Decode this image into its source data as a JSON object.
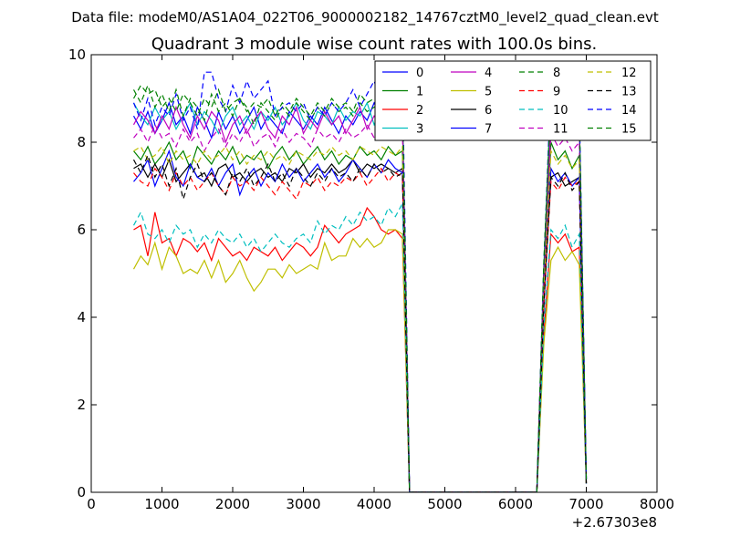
{
  "suptitle": "Data file: modeM0/AS1A04_022T06_9000002182_14767cztM0_level2_quad_clean.evt",
  "chart_data": {
    "type": "line",
    "title": "Quadrant 3 module wise count rates with 100.0s bins.",
    "xlabel": "",
    "ylabel": "",
    "x_offset_label": "+2.67303e8",
    "xlim": [
      0,
      8000
    ],
    "ylim": [
      0,
      10
    ],
    "xticks": [
      0,
      1000,
      2000,
      3000,
      4000,
      5000,
      6000,
      7000,
      8000
    ],
    "yticks": [
      0,
      2,
      4,
      6,
      8,
      10
    ],
    "grid": false,
    "legend_position": "top-right",
    "x": [
      600,
      700,
      800,
      900,
      1000,
      1100,
      1200,
      1300,
      1400,
      1500,
      1600,
      1700,
      1800,
      1900,
      2000,
      2100,
      2200,
      2300,
      2400,
      2500,
      2600,
      2700,
      2800,
      2900,
      3000,
      3100,
      3200,
      3300,
      3400,
      3500,
      3600,
      3700,
      3800,
      3900,
      4000,
      4100,
      4200,
      4300,
      4400,
      4500,
      4600,
      4700,
      4800,
      4900,
      5000,
      5100,
      5200,
      5300,
      5400,
      5500,
      5600,
      5700,
      5800,
      5900,
      6000,
      6100,
      6200,
      6300,
      6400,
      6500,
      6600,
      6700,
      6800,
      6900,
      7000
    ],
    "series": [
      {
        "name": "0",
        "color": "#0000ff",
        "dash": "solid",
        "values": [
          8.6,
          8.3,
          8.7,
          8.2,
          8.5,
          8.9,
          8.4,
          8.6,
          8.2,
          8.8,
          8.5,
          8.1,
          8.7,
          8.3,
          8.6,
          8.2,
          8.5,
          8.8,
          8.3,
          8.6,
          8.4,
          8.2,
          8.7,
          8.5,
          8.3,
          8.6,
          8.4,
          8.8,
          8.5,
          8.2,
          8.6,
          8.4,
          8.7,
          8.5,
          8.9,
          8.6,
          8.8,
          8.5,
          8.7,
          0,
          0,
          0,
          0,
          0,
          0,
          0,
          0,
          0,
          0,
          0,
          0,
          0,
          0,
          0,
          0,
          0,
          0,
          0,
          5.0,
          8.9,
          8.3,
          8.6,
          8.4,
          8.5,
          0.3
        ]
      },
      {
        "name": "1",
        "color": "#008000",
        "dash": "solid",
        "values": [
          7.8,
          7.6,
          7.9,
          7.5,
          7.7,
          8.0,
          7.6,
          7.8,
          7.4,
          7.9,
          7.7,
          7.5,
          7.8,
          7.6,
          7.9,
          7.5,
          7.7,
          7.6,
          7.8,
          7.4,
          7.7,
          7.9,
          7.6,
          7.8,
          7.5,
          7.7,
          7.9,
          7.6,
          7.8,
          7.5,
          7.7,
          7.6,
          7.9,
          7.7,
          7.8,
          7.6,
          7.9,
          7.7,
          7.8,
          0,
          0,
          0,
          0,
          0,
          0,
          0,
          0,
          0,
          0,
          0,
          0,
          0,
          0,
          0,
          0,
          0,
          0,
          0,
          4.5,
          8.0,
          7.6,
          7.8,
          7.4,
          7.7,
          0.3
        ]
      },
      {
        "name": "2",
        "color": "#ff0000",
        "dash": "solid",
        "values": [
          6.0,
          6.1,
          5.4,
          6.4,
          5.7,
          5.8,
          5.4,
          5.8,
          5.7,
          5.5,
          5.7,
          5.3,
          5.8,
          5.6,
          5.4,
          5.5,
          5.3,
          5.6,
          5.5,
          5.4,
          5.6,
          5.3,
          5.5,
          5.7,
          5.6,
          5.4,
          5.6,
          6.1,
          5.9,
          5.7,
          5.9,
          6.0,
          6.1,
          6.5,
          6.3,
          6.0,
          5.9,
          6.0,
          5.8,
          0,
          0,
          0,
          0,
          0,
          0,
          0,
          0,
          0,
          0,
          0,
          0,
          0,
          0,
          0,
          0,
          0,
          0,
          0,
          3.6,
          5.9,
          5.7,
          5.9,
          5.5,
          5.6,
          0.2
        ]
      },
      {
        "name": "3",
        "color": "#00bfbf",
        "dash": "solid",
        "values": [
          8.9,
          8.6,
          8.4,
          8.8,
          8.5,
          8.7,
          8.3,
          8.6,
          8.9,
          8.4,
          8.7,
          8.5,
          8.2,
          8.6,
          8.8,
          8.4,
          8.6,
          8.3,
          8.7,
          8.5,
          8.8,
          8.4,
          8.6,
          8.9,
          8.5,
          8.3,
          8.7,
          8.6,
          8.4,
          8.8,
          8.5,
          8.7,
          8.6,
          8.9,
          8.4,
          8.8,
          8.6,
          8.5,
          8.7,
          0,
          0,
          0,
          0,
          0,
          0,
          0,
          0,
          0,
          0,
          0,
          0,
          0,
          0,
          0,
          0,
          0,
          0,
          0,
          5.2,
          9.1,
          8.4,
          8.7,
          8.3,
          8.6,
          0.3
        ]
      },
      {
        "name": "4",
        "color": "#bf00bf",
        "dash": "solid",
        "values": [
          8.4,
          8.7,
          8.5,
          8.2,
          8.6,
          8.3,
          8.8,
          8.4,
          8.1,
          8.6,
          8.3,
          8.7,
          8.5,
          8.0,
          8.4,
          8.6,
          8.2,
          8.5,
          8.7,
          8.3,
          8.1,
          8.6,
          8.4,
          8.8,
          8.2,
          8.5,
          8.3,
          8.7,
          8.4,
          8.6,
          8.2,
          8.5,
          8.8,
          8.3,
          8.6,
          8.4,
          8.9,
          8.5,
          8.6,
          0,
          0,
          0,
          0,
          0,
          0,
          0,
          0,
          0,
          0,
          0,
          0,
          0,
          0,
          0,
          0,
          0,
          0,
          0,
          5.1,
          8.5,
          8.2,
          8.6,
          8.1,
          8.4,
          0.3
        ]
      },
      {
        "name": "5",
        "color": "#bfbf00",
        "dash": "solid",
        "values": [
          5.1,
          5.4,
          5.2,
          5.7,
          5.1,
          5.6,
          5.4,
          5.0,
          5.1,
          5.0,
          5.3,
          4.9,
          5.3,
          4.8,
          5.0,
          5.3,
          4.9,
          4.6,
          4.8,
          5.1,
          5.1,
          4.9,
          5.2,
          5.0,
          5.1,
          5.2,
          5.1,
          5.7,
          5.3,
          5.4,
          5.4,
          5.8,
          5.6,
          5.8,
          5.6,
          5.7,
          6.0,
          6.0,
          5.9,
          0,
          0,
          0,
          0,
          0,
          0,
          0,
          0,
          0,
          0,
          0,
          0,
          0,
          0,
          0,
          0,
          0,
          0,
          0,
          3.4,
          5.3,
          5.6,
          5.3,
          5.5,
          5.2,
          0.2
        ]
      },
      {
        "name": "6",
        "color": "#000000",
        "dash": "solid",
        "values": [
          7.4,
          7.5,
          7.2,
          7.5,
          7.2,
          7.6,
          7.1,
          7.3,
          7.5,
          7.2,
          7.3,
          7.0,
          7.4,
          7.5,
          7.2,
          7.3,
          7.1,
          7.3,
          7.4,
          7.2,
          7.3,
          7.1,
          7.4,
          7.3,
          7.5,
          7.2,
          7.4,
          7.3,
          7.5,
          7.3,
          7.4,
          7.6,
          7.3,
          7.5,
          7.4,
          7.5,
          7.4,
          7.3,
          7.4,
          0,
          0,
          0,
          0,
          0,
          0,
          0,
          0,
          0,
          0,
          0,
          0,
          0,
          0,
          0,
          0,
          0,
          0,
          0,
          4.4,
          7.2,
          7.3,
          7.0,
          7.1,
          7.2,
          0.2
        ]
      },
      {
        "name": "7",
        "color": "#0000ff",
        "dash": "solid",
        "values": [
          7.1,
          7.3,
          7.6,
          7.0,
          7.4,
          7.8,
          7.2,
          7.0,
          7.5,
          7.2,
          7.1,
          7.4,
          7.0,
          7.3,
          7.5,
          6.8,
          7.2,
          7.4,
          7.0,
          7.3,
          7.1,
          7.5,
          7.2,
          7.4,
          7.1,
          7.3,
          7.5,
          7.2,
          7.4,
          7.1,
          7.3,
          7.6,
          7.4,
          7.2,
          7.5,
          7.3,
          7.6,
          7.4,
          7.3,
          0,
          0,
          0,
          0,
          0,
          0,
          0,
          0,
          0,
          0,
          0,
          0,
          0,
          0,
          0,
          0,
          0,
          0,
          0,
          4.2,
          7.4,
          7.1,
          7.3,
          7.0,
          7.2,
          0.2
        ]
      },
      {
        "name": "8",
        "color": "#008000",
        "dash": "dashed",
        "values": [
          9.2,
          8.9,
          9.3,
          8.8,
          9.1,
          8.7,
          9.2,
          8.6,
          9.0,
          8.8,
          8.5,
          9.1,
          8.7,
          8.9,
          8.6,
          9.0,
          8.8,
          8.4,
          8.9,
          8.7,
          8.5,
          8.8,
          8.6,
          8.9,
          8.7,
          8.5,
          8.8,
          8.6,
          8.9,
          8.7,
          8.8,
          8.6,
          8.9,
          8.7,
          8.8,
          8.9,
          8.6,
          8.8,
          8.7,
          0,
          0,
          0,
          0,
          0,
          0,
          0,
          0,
          0,
          0,
          0,
          0,
          0,
          0,
          0,
          0,
          0,
          0,
          0,
          5.0,
          9.2,
          8.5,
          8.7,
          9.3,
          8.6,
          0.3
        ]
      },
      {
        "name": "9",
        "color": "#ff0000",
        "dash": "dashed",
        "values": [
          7.3,
          7.1,
          7.0,
          7.4,
          7.2,
          6.9,
          7.3,
          7.0,
          7.2,
          6.9,
          7.1,
          7.3,
          7.0,
          6.8,
          7.2,
          7.0,
          7.1,
          6.9,
          7.2,
          7.0,
          6.8,
          7.1,
          6.9,
          6.7,
          7.1,
          7.0,
          7.2,
          6.9,
          7.1,
          7.0,
          7.2,
          7.1,
          7.3,
          7.0,
          7.2,
          7.4,
          7.1,
          7.3,
          7.2,
          0,
          0,
          0,
          0,
          0,
          0,
          0,
          0,
          0,
          0,
          0,
          0,
          0,
          0,
          0,
          0,
          0,
          0,
          0,
          4.3,
          7.1,
          6.9,
          7.2,
          7.0,
          7.1,
          0.2
        ]
      },
      {
        "name": "10",
        "color": "#00bfbf",
        "dash": "dashed",
        "values": [
          6.1,
          6.4,
          5.9,
          5.8,
          6.0,
          5.7,
          6.1,
          5.9,
          6.0,
          5.6,
          5.9,
          5.7,
          6.0,
          5.8,
          5.7,
          5.9,
          5.6,
          5.8,
          5.5,
          5.7,
          5.9,
          5.7,
          5.6,
          5.8,
          5.9,
          5.7,
          6.2,
          5.9,
          6.1,
          6.0,
          6.3,
          6.1,
          6.4,
          6.2,
          6.3,
          6.1,
          6.5,
          6.3,
          6.6,
          0,
          0,
          0,
          0,
          0,
          0,
          0,
          0,
          0,
          0,
          0,
          0,
          0,
          0,
          0,
          0,
          0,
          0,
          0,
          3.8,
          6.0,
          5.8,
          6.1,
          5.6,
          5.9,
          0.2
        ]
      },
      {
        "name": "11",
        "color": "#bf00bf",
        "dash": "dashed",
        "values": [
          8.1,
          8.3,
          8.0,
          8.4,
          8.1,
          8.2,
          7.9,
          8.3,
          8.0,
          8.2,
          7.8,
          8.1,
          8.3,
          7.9,
          8.2,
          8.0,
          8.3,
          7.9,
          8.1,
          8.2,
          7.9,
          8.3,
          8.0,
          8.2,
          8.1,
          7.9,
          8.3,
          8.1,
          8.2,
          8.0,
          8.3,
          8.1,
          8.2,
          8.4,
          8.1,
          8.3,
          8.2,
          8.1,
          8.3,
          0,
          0,
          0,
          0,
          0,
          0,
          0,
          0,
          0,
          0,
          0,
          0,
          0,
          0,
          0,
          0,
          0,
          0,
          0,
          4.8,
          8.2,
          7.9,
          8.1,
          7.8,
          8.0,
          0.3
        ]
      },
      {
        "name": "12",
        "color": "#bfbf00",
        "dash": "dashed",
        "values": [
          7.8,
          7.9,
          7.6,
          7.7,
          7.9,
          7.5,
          7.8,
          7.6,
          7.7,
          7.5,
          7.8,
          7.6,
          7.7,
          7.9,
          7.6,
          7.8,
          7.5,
          7.7,
          7.6,
          7.8,
          7.6,
          7.7,
          7.5,
          7.8,
          7.7,
          7.6,
          7.8,
          7.7,
          7.9,
          7.7,
          7.8,
          7.6,
          7.9,
          7.8,
          7.7,
          7.9,
          7.8,
          7.7,
          7.9,
          0,
          0,
          0,
          0,
          0,
          0,
          0,
          0,
          0,
          0,
          0,
          0,
          0,
          0,
          0,
          0,
          0,
          0,
          0,
          4.6,
          7.8,
          7.5,
          7.7,
          7.4,
          7.6,
          0.2
        ]
      },
      {
        "name": "13",
        "color": "#000000",
        "dash": "dashed",
        "values": [
          7.6,
          7.3,
          7.7,
          7.2,
          7.5,
          7.0,
          7.4,
          6.7,
          7.2,
          7.5,
          7.1,
          7.3,
          7.0,
          6.8,
          7.3,
          7.1,
          7.4,
          7.0,
          7.2,
          7.5,
          7.1,
          7.3,
          7.0,
          7.4,
          7.2,
          7.0,
          7.3,
          7.1,
          7.4,
          7.2,
          7.3,
          7.1,
          7.4,
          7.2,
          7.5,
          7.3,
          7.4,
          7.2,
          7.3,
          0,
          0,
          0,
          0,
          0,
          0,
          0,
          0,
          0,
          0,
          0,
          0,
          0,
          0,
          0,
          0,
          0,
          0,
          0,
          4.3,
          7.2,
          7.0,
          7.3,
          6.9,
          7.1,
          0.2
        ]
      },
      {
        "name": "14",
        "color": "#0000ff",
        "dash": "dashed",
        "values": [
          8.9,
          8.5,
          9.0,
          8.4,
          8.8,
          8.6,
          9.1,
          8.5,
          8.8,
          8.3,
          9.6,
          9.6,
          9.0,
          8.7,
          9.3,
          8.9,
          9.4,
          9.0,
          9.2,
          9.4,
          8.6,
          8.8,
          8.9,
          8.7,
          8.9,
          8.5,
          8.8,
          8.6,
          8.9,
          8.7,
          8.9,
          9.2,
          8.8,
          9.1,
          9.4,
          8.9,
          9.2,
          8.8,
          9.6,
          0,
          0,
          0,
          0,
          0,
          0,
          0,
          0,
          0,
          0,
          0,
          0,
          0,
          0,
          0,
          0,
          0,
          0,
          0,
          5.2,
          9.4,
          8.8,
          9.0,
          8.6,
          8.9,
          0.3
        ]
      },
      {
        "name": "15",
        "color": "#008000",
        "dash": "dashed",
        "values": [
          9.0,
          9.3,
          9.1,
          9.2,
          8.8,
          9.0,
          8.7,
          9.1,
          8.9,
          8.6,
          9.0,
          8.8,
          9.2,
          8.7,
          8.9,
          9.0,
          8.7,
          8.9,
          8.8,
          9.0,
          8.6,
          8.9,
          8.7,
          9.0,
          8.8,
          8.6,
          8.9,
          8.7,
          9.0,
          8.8,
          8.9,
          8.7,
          9.1,
          8.9,
          9.0,
          8.8,
          9.1,
          8.9,
          9.0,
          0,
          0,
          0,
          0,
          0,
          0,
          0,
          0,
          0,
          0,
          0,
          0,
          0,
          0,
          0,
          0,
          0,
          0,
          0,
          5.3,
          9.0,
          8.6,
          8.9,
          8.5,
          8.7,
          0.3
        ]
      }
    ]
  }
}
